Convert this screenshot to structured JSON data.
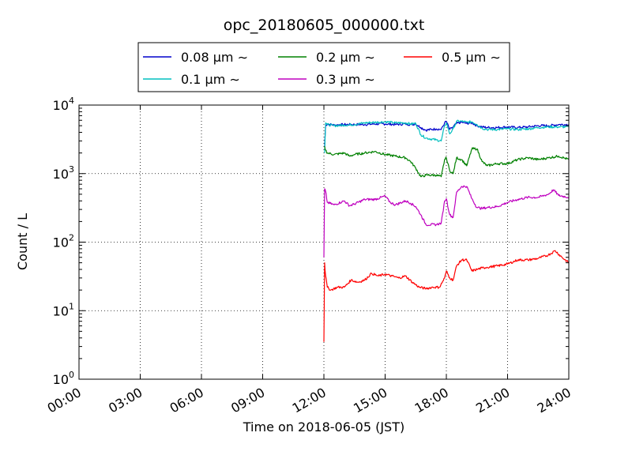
{
  "chart_data": {
    "type": "line",
    "title": "opc_20180605_000000.txt",
    "xlabel": "Time on 2018-06-05 (JST)",
    "ylabel": "Count / L",
    "yscale": "log",
    "ylim": [
      1,
      10000
    ],
    "xlim": [
      "00:00",
      "24:00"
    ],
    "xticks": [
      "00:00",
      "03:00",
      "06:00",
      "09:00",
      "12:00",
      "15:00",
      "18:00",
      "21:00",
      "24:00"
    ],
    "yticks": [
      {
        "value": 1,
        "base": "10",
        "exp": "0"
      },
      {
        "value": 10,
        "base": "10",
        "exp": "1"
      },
      {
        "value": 100,
        "base": "10",
        "exp": "2"
      },
      {
        "value": 1000,
        "base": "10",
        "exp": "3"
      },
      {
        "value": 10000,
        "base": "10",
        "exp": "4"
      }
    ],
    "grid": true,
    "legend_position": "top-center",
    "legend_columns": 3,
    "series": [
      {
        "name": "0.08 μm ∼",
        "color": "#0000cc",
        "x": [
          "12:02",
          "12:05",
          "12:10",
          "12:30",
          "13:00",
          "13:30",
          "14:00",
          "14:30",
          "15:00",
          "15:30",
          "16:00",
          "16:15",
          "16:30",
          "16:45",
          "17:00",
          "17:30",
          "17:45",
          "17:55",
          "18:00",
          "18:10",
          "18:20",
          "18:30",
          "18:45",
          "19:00",
          "19:15",
          "19:30",
          "19:45",
          "20:00",
          "20:30",
          "21:00",
          "21:30",
          "22:00",
          "22:30",
          "23:00",
          "23:30",
          "24:00"
        ],
        "y": [
          2500,
          5000,
          5300,
          5100,
          5200,
          5200,
          5200,
          5300,
          5300,
          5200,
          5300,
          5200,
          5300,
          4700,
          4300,
          4500,
          4400,
          5500,
          5800,
          4400,
          4800,
          5400,
          5600,
          5400,
          5500,
          5000,
          4800,
          4700,
          4700,
          4800,
          4700,
          4800,
          5000,
          5000,
          5200,
          5200
        ]
      },
      {
        "name": "0.1 μm ∼",
        "color": "#00bfbf",
        "x": [
          "12:02",
          "12:05",
          "12:10",
          "12:30",
          "13:00",
          "13:30",
          "14:00",
          "14:30",
          "15:00",
          "15:30",
          "16:00",
          "16:15",
          "16:30",
          "16:45",
          "17:00",
          "17:30",
          "17:45",
          "17:55",
          "18:00",
          "18:10",
          "18:20",
          "18:30",
          "18:45",
          "19:00",
          "19:15",
          "19:30",
          "19:45",
          "20:00",
          "20:30",
          "21:00",
          "21:30",
          "22:00",
          "22:30",
          "23:00",
          "23:30",
          "24:00"
        ],
        "y": [
          2000,
          5500,
          5200,
          5000,
          5100,
          5200,
          5500,
          5600,
          5700,
          5500,
          5500,
          5300,
          5400,
          3700,
          3300,
          3100,
          3000,
          5000,
          5500,
          3800,
          4500,
          5800,
          5800,
          5600,
          5700,
          5200,
          4600,
          4400,
          4400,
          4500,
          4400,
          4500,
          4700,
          4800,
          4800,
          4800
        ]
      },
      {
        "name": "0.2 μm ∼",
        "color": "#008000",
        "x": [
          "12:02",
          "12:05",
          "12:10",
          "12:30",
          "13:00",
          "13:15",
          "13:30",
          "14:00",
          "14:30",
          "15:00",
          "15:30",
          "16:00",
          "16:15",
          "16:30",
          "16:45",
          "17:00",
          "17:30",
          "17:45",
          "17:55",
          "18:00",
          "18:10",
          "18:20",
          "18:30",
          "18:45",
          "19:00",
          "19:15",
          "19:30",
          "19:45",
          "20:00",
          "20:30",
          "21:00",
          "21:30",
          "22:00",
          "22:30",
          "23:00",
          "23:30",
          "23:45",
          "24:00"
        ],
        "y": [
          2500,
          2200,
          2000,
          1900,
          2000,
          1800,
          1900,
          2000,
          2100,
          1900,
          1800,
          1700,
          1500,
          1200,
          900,
          950,
          950,
          900,
          1600,
          1700,
          1100,
          1000,
          1700,
          1600,
          1300,
          2300,
          2300,
          1500,
          1300,
          1400,
          1400,
          1600,
          1700,
          1600,
          1700,
          1800,
          1700,
          1600
        ]
      },
      {
        "name": "0.3 μm ∼",
        "color": "#bf00bf",
        "x": [
          "12:00",
          "12:02",
          "12:05",
          "12:10",
          "12:30",
          "13:00",
          "13:15",
          "13:30",
          "14:00",
          "14:30",
          "15:00",
          "15:15",
          "15:30",
          "16:00",
          "16:15",
          "16:30",
          "16:45",
          "17:00",
          "17:30",
          "17:45",
          "17:55",
          "18:00",
          "18:10",
          "18:20",
          "18:30",
          "18:45",
          "19:00",
          "19:15",
          "19:30",
          "19:45",
          "20:00",
          "20:30",
          "21:00",
          "21:30",
          "22:00",
          "22:30",
          "23:00",
          "23:15",
          "23:30",
          "24:00"
        ],
        "y": [
          60,
          600,
          550,
          380,
          350,
          400,
          340,
          360,
          420,
          420,
          470,
          380,
          350,
          400,
          370,
          330,
          250,
          180,
          180,
          190,
          400,
          430,
          250,
          230,
          530,
          650,
          650,
          430,
          320,
          310,
          320,
          330,
          380,
          420,
          450,
          450,
          500,
          580,
          480,
          450
        ]
      },
      {
        "name": "0.5 μm ∼",
        "color": "#ff0000",
        "x": [
          "12:00",
          "12:02",
          "12:05",
          "12:10",
          "12:20",
          "12:40",
          "13:00",
          "13:20",
          "13:40",
          "14:00",
          "14:20",
          "14:40",
          "15:00",
          "15:20",
          "15:40",
          "16:00",
          "16:20",
          "16:40",
          "17:00",
          "17:20",
          "17:40",
          "17:55",
          "18:00",
          "18:10",
          "18:20",
          "18:30",
          "18:45",
          "19:00",
          "19:15",
          "19:30",
          "19:45",
          "20:00",
          "20:30",
          "21:00",
          "21:30",
          "22:00",
          "22:30",
          "23:00",
          "23:20",
          "23:40",
          "24:00"
        ],
        "y": [
          3.5,
          50,
          32,
          22,
          20,
          22,
          22,
          28,
          26,
          28,
          35,
          32,
          34,
          32,
          30,
          32,
          26,
          22,
          21,
          22,
          22,
          30,
          38,
          30,
          28,
          45,
          55,
          55,
          38,
          40,
          42,
          43,
          45,
          48,
          55,
          55,
          58,
          65,
          75,
          60,
          50
        ]
      }
    ]
  }
}
